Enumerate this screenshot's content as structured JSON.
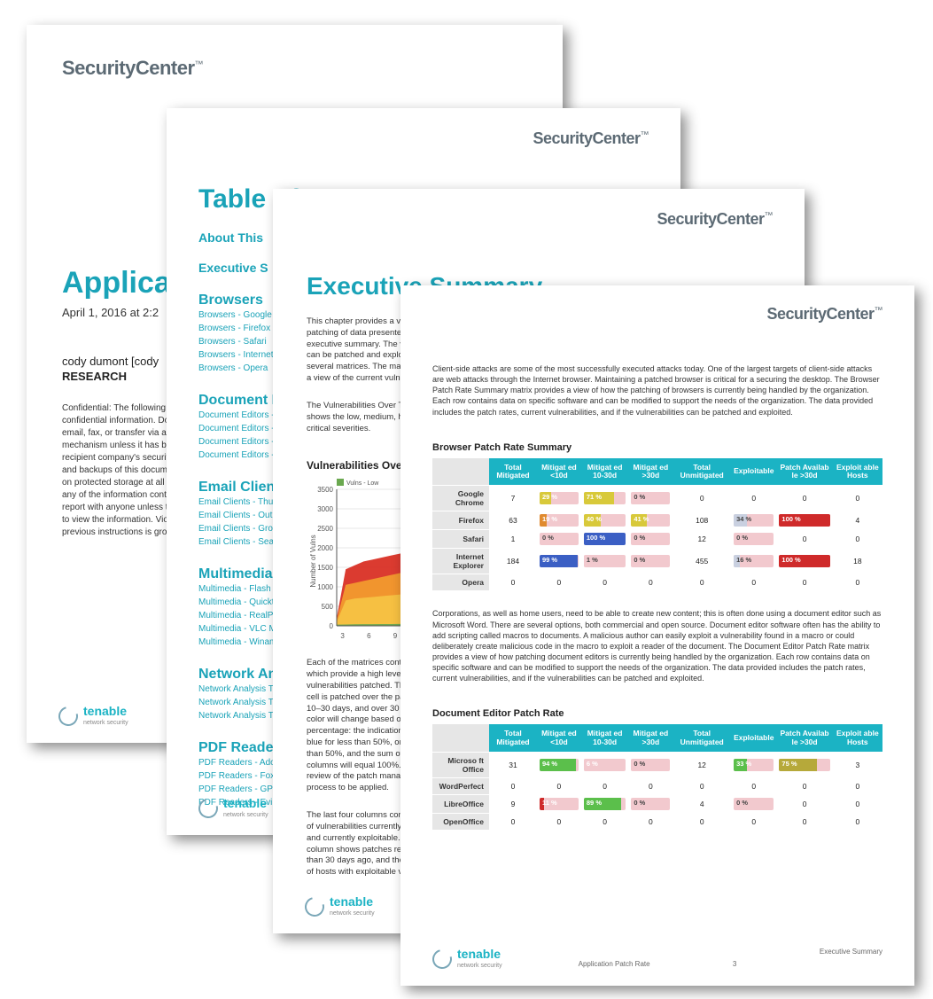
{
  "brand": "SecurityCenter",
  "brand_tm": "™",
  "tenable": {
    "name": "tenable",
    "tagline": "network security"
  },
  "page1": {
    "title_visible": "Applicat",
    "dateline": "April 1, 2016 at 2:2",
    "author": "cody dumont [cody",
    "org": "RESEARCH",
    "confidential": "Confidential: The following report contains confidential information. Do not distribute, email, fax, or transfer via any electronic mechanism unless it has been approved by the recipient company's security policy. All copies and backups of this document should be saved on protected storage at all times. Do not share any of the information contained within this report with anyone unless they are authorized to view the information. Violating any of the previous instructions is grounds for termination."
  },
  "page2": {
    "toc_title": "Table of Contents",
    "sec_about": "About This",
    "sec_exec": "Executive S",
    "groups": [
      {
        "heading": "Browsers",
        "links": [
          "Browsers - Google C",
          "Browsers - Firefox",
          "Browsers - Safari",
          "Browsers - Internet",
          "Browsers - Opera"
        ]
      },
      {
        "heading": "Document E",
        "links": [
          "Document Editors -",
          "Document Editors -",
          "Document Editors -",
          "Document Editors -"
        ]
      },
      {
        "heading": "Email Clien",
        "links": [
          "Email Clients - Thun",
          "Email Clients - Outl",
          "Email Clients - Grou",
          "Email Clients - Sea"
        ]
      },
      {
        "heading": "Multimedia",
        "links": [
          "Multimedia - Flash",
          "Multimedia - Quickt",
          "Multimedia - RealPl",
          "Multimedia - VLC M",
          "Multimedia - Winam"
        ]
      },
      {
        "heading": "Network An",
        "links": [
          "Network Analysis To",
          "Network Analysis To",
          "Network Analysis To"
        ]
      },
      {
        "heading": "PDF Reade",
        "links": [
          "PDF Readers - Ado",
          "PDF Readers - Fox",
          "PDF Readers - GPo",
          "PDF Readers - Evin"
        ]
      }
    ]
  },
  "page3": {
    "heading": "Executive Summary",
    "para1": "This chapter provides a view of how the patching of data presented in the executive summary. The vulnerabilities can be patched and exploited across several matrices. The matrices provide a view of the current vulnerability status.",
    "para2": "The Vulnerabilities Over Time chart shows the low, medium, high, and critical severities.",
    "chart_title": "Vulnerabilities Over",
    "chart": {
      "type": "area",
      "x_ticks": [
        3,
        6,
        9,
        12,
        15
      ],
      "y_ticks": [
        0,
        500,
        1000,
        1500,
        2000,
        2500,
        3000,
        3500
      ],
      "ylim": [
        0,
        3500
      ],
      "y_label": "Number of Vulns",
      "legend": {
        "low_label": "Vulns - Low",
        "low_color": "#6aa84f"
      },
      "series": [
        {
          "name": "critical",
          "color": "#d93025",
          "values": [
            200,
            1450,
            1550,
            1650,
            1700,
            1750,
            1800,
            1850,
            1900,
            1950,
            2000,
            2050,
            2100,
            2100
          ]
        },
        {
          "name": "high",
          "color": "#f29a2e",
          "values": [
            150,
            1050,
            1100,
            1150,
            1200,
            1250,
            1300,
            1350,
            1400,
            1400,
            1450,
            1500,
            1500,
            1550
          ]
        },
        {
          "name": "medium",
          "color": "#f6c243",
          "values": [
            100,
            650,
            700,
            720,
            740,
            760,
            780,
            800,
            820,
            830,
            840,
            850,
            860,
            870
          ]
        },
        {
          "name": "low",
          "color": "#6aa84f",
          "values": [
            30,
            35,
            40,
            42,
            44,
            45,
            46,
            47,
            48,
            48,
            49,
            50,
            50,
            50
          ]
        }
      ],
      "grid_color": "#cfcfcf",
      "background": "#ffffff",
      "label_fontsize": 9
    },
    "para3": "Each of the matrices contain columns which provide a high level view of the vulnerabilities patched. The color of the cell is patched over the past 10 days, 10–30 days, and over 30 days. The color will change based on the percentage: the indication color will be blue for less than 50%, orange for more than 50%, and the sum of the 3 columns will equal 100%. This helps the review of the patch management process to be applied.",
    "para4": "The last four columns contain the count of vulnerabilities currently discovered and currently exploitable. The second column shows patches released more than 30 days ago, and the current count of hosts with exploitable vulnerabilities."
  },
  "page4": {
    "lead": "Client-side attacks are some of the most successfully executed attacks today. One of the largest targets of client-side attacks are web attacks through the Internet browser. Maintaining a patched browser is critical for a securing the desktop. The Browser Patch Rate Summary matrix provides a view of how the patching of browsers is currently being handled by the organization. Each row contains data on specific software and can be modified to support the needs of the organization. The data provided includes the patch rates, current vulnerabilities, and if the vulnerabilities can be patched and exploited.",
    "columns": [
      "Total Mitigated",
      "Mitigat ed <10d",
      "Mitigat ed 10-30d",
      "Mitigat ed >30d",
      "Total Unmitigated",
      "Exploitable",
      "Patch Availab le >30d",
      "Exploit able Hosts"
    ],
    "colors": {
      "header_bg": "#1bb3c4",
      "bar_track": "#f2c9ce",
      "green": "#5bbf4b",
      "yellow": "#d8c93a",
      "orange": "#e08a2e",
      "red": "#cf2a2a",
      "blue": "#3b5fc4",
      "grey": "#c9d0e0",
      "olive": "#b6a93a"
    },
    "table_browser": {
      "title": "Browser Patch Rate Summary",
      "rows": [
        {
          "name": "Google Chrome",
          "mitigated": 7,
          "lt10": {
            "pct": 29,
            "c": "yellow"
          },
          "d1030": {
            "pct": 71,
            "c": "yellow"
          },
          "gt30": {
            "pct": 0,
            "c": "track"
          },
          "unmit": 0,
          "explo": 0,
          "patch30": 0,
          "ehosts": 0
        },
        {
          "name": "Firefox",
          "mitigated": 63,
          "lt10": {
            "pct": 19,
            "c": "orange"
          },
          "d1030": {
            "pct": 40,
            "c": "yellow"
          },
          "gt30": {
            "pct": 41,
            "c": "yellow"
          },
          "unmit": 108,
          "explo": {
            "pct": 34,
            "c": "grey"
          },
          "patch30": {
            "pct": 100,
            "c": "red"
          },
          "ehosts": 4
        },
        {
          "name": "Safari",
          "mitigated": 1,
          "lt10": {
            "pct": 0,
            "c": "track"
          },
          "d1030": {
            "pct": 100,
            "c": "blue"
          },
          "gt30": {
            "pct": 0,
            "c": "track"
          },
          "unmit": 12,
          "explo": {
            "pct": 0,
            "c": "grey"
          },
          "patch30": 0,
          "ehosts": 0
        },
        {
          "name": "Internet Explorer",
          "mitigated": 184,
          "lt10": {
            "pct": 99,
            "c": "blue"
          },
          "d1030": {
            "pct": 1,
            "c": "track"
          },
          "gt30": {
            "pct": 0,
            "c": "track"
          },
          "unmit": 455,
          "explo": {
            "pct": 16,
            "c": "grey"
          },
          "patch30": {
            "pct": 100,
            "c": "red"
          },
          "ehosts": 18
        },
        {
          "name": "Opera",
          "mitigated": 0,
          "lt10": 0,
          "d1030": 0,
          "gt30": 0,
          "unmit": 0,
          "explo": 0,
          "patch30": 0,
          "ehosts": 0
        }
      ]
    },
    "mid_para": "Corporations, as well as home users, need to be able to create new content; this is often done using a document editor such as Microsoft Word. There are several options, both commercial and open source. Document editor software often has the ability to add scripting called macros to documents. A malicious author can easily exploit a vulnerability found in a macro or could deliberately create malicious code in the macro to exploit a reader of the document. The Document Editor Patch Rate matrix provides a view of how patching document editors is currently being handled by the organization. Each row contains data on specific software and can be modified to support the needs of the organization. The data provided includes the patch rates, current vulnerabilities, and if the vulnerabilities can be patched and exploited.",
    "table_doc": {
      "title": "Document Editor Patch Rate",
      "rows": [
        {
          "name": "Microso ft Office",
          "mitigated": 31,
          "lt10": {
            "pct": 94,
            "c": "green"
          },
          "d1030": {
            "pct": 6,
            "c": "track-red"
          },
          "gt30": {
            "pct": 0,
            "c": "track"
          },
          "unmit": 12,
          "explo": {
            "pct": 33,
            "c": "green"
          },
          "patch30": {
            "pct": 75,
            "c": "olive"
          },
          "ehosts": 3
        },
        {
          "name": "WordPerfect",
          "mitigated": 0,
          "lt10": 0,
          "d1030": 0,
          "gt30": 0,
          "unmit": 0,
          "explo": 0,
          "patch30": 0,
          "ehosts": 0
        },
        {
          "name": "LibreOffice",
          "mitigated": 9,
          "lt10": {
            "pct": 11,
            "c": "red"
          },
          "d1030": {
            "pct": 89,
            "c": "green"
          },
          "gt30": {
            "pct": 0,
            "c": "track"
          },
          "unmit": 4,
          "explo": {
            "pct": 0,
            "c": "grey"
          },
          "patch30": 0,
          "ehosts": 0
        },
        {
          "name": "OpenOffice",
          "mitigated": 0,
          "lt10": 0,
          "d1030": 0,
          "gt30": 0,
          "unmit": 0,
          "explo": 0,
          "patch30": 0,
          "ehosts": 0
        }
      ]
    },
    "footer_right": "Executive Summary",
    "footer_center": "Application Patch Rate",
    "page_no": "3"
  }
}
